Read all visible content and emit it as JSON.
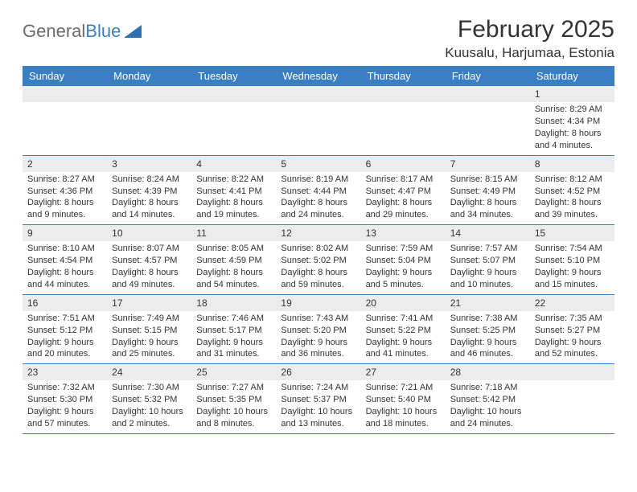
{
  "logo": {
    "text1": "General",
    "text2": "Blue"
  },
  "title": "February 2025",
  "location": "Kuusalu, Harjumaa, Estonia",
  "colors": {
    "header_bg": "#3a7fc4",
    "header_text": "#ffffff",
    "daynum_bg": "#ececec",
    "border": "#3a7fc4",
    "text": "#333333",
    "page_bg": "#ffffff"
  },
  "day_headers": [
    "Sunday",
    "Monday",
    "Tuesday",
    "Wednesday",
    "Thursday",
    "Friday",
    "Saturday"
  ],
  "weeks": [
    [
      {
        "n": "",
        "empty": true
      },
      {
        "n": "",
        "empty": true
      },
      {
        "n": "",
        "empty": true
      },
      {
        "n": "",
        "empty": true
      },
      {
        "n": "",
        "empty": true
      },
      {
        "n": "",
        "empty": true
      },
      {
        "n": "1",
        "sunrise": "Sunrise: 8:29 AM",
        "sunset": "Sunset: 4:34 PM",
        "day1": "Daylight: 8 hours",
        "day2": "and 4 minutes."
      }
    ],
    [
      {
        "n": "2",
        "sunrise": "Sunrise: 8:27 AM",
        "sunset": "Sunset: 4:36 PM",
        "day1": "Daylight: 8 hours",
        "day2": "and 9 minutes."
      },
      {
        "n": "3",
        "sunrise": "Sunrise: 8:24 AM",
        "sunset": "Sunset: 4:39 PM",
        "day1": "Daylight: 8 hours",
        "day2": "and 14 minutes."
      },
      {
        "n": "4",
        "sunrise": "Sunrise: 8:22 AM",
        "sunset": "Sunset: 4:41 PM",
        "day1": "Daylight: 8 hours",
        "day2": "and 19 minutes."
      },
      {
        "n": "5",
        "sunrise": "Sunrise: 8:19 AM",
        "sunset": "Sunset: 4:44 PM",
        "day1": "Daylight: 8 hours",
        "day2": "and 24 minutes."
      },
      {
        "n": "6",
        "sunrise": "Sunrise: 8:17 AM",
        "sunset": "Sunset: 4:47 PM",
        "day1": "Daylight: 8 hours",
        "day2": "and 29 minutes."
      },
      {
        "n": "7",
        "sunrise": "Sunrise: 8:15 AM",
        "sunset": "Sunset: 4:49 PM",
        "day1": "Daylight: 8 hours",
        "day2": "and 34 minutes."
      },
      {
        "n": "8",
        "sunrise": "Sunrise: 8:12 AM",
        "sunset": "Sunset: 4:52 PM",
        "day1": "Daylight: 8 hours",
        "day2": "and 39 minutes."
      }
    ],
    [
      {
        "n": "9",
        "sunrise": "Sunrise: 8:10 AM",
        "sunset": "Sunset: 4:54 PM",
        "day1": "Daylight: 8 hours",
        "day2": "and 44 minutes."
      },
      {
        "n": "10",
        "sunrise": "Sunrise: 8:07 AM",
        "sunset": "Sunset: 4:57 PM",
        "day1": "Daylight: 8 hours",
        "day2": "and 49 minutes."
      },
      {
        "n": "11",
        "sunrise": "Sunrise: 8:05 AM",
        "sunset": "Sunset: 4:59 PM",
        "day1": "Daylight: 8 hours",
        "day2": "and 54 minutes."
      },
      {
        "n": "12",
        "sunrise": "Sunrise: 8:02 AM",
        "sunset": "Sunset: 5:02 PM",
        "day1": "Daylight: 8 hours",
        "day2": "and 59 minutes."
      },
      {
        "n": "13",
        "sunrise": "Sunrise: 7:59 AM",
        "sunset": "Sunset: 5:04 PM",
        "day1": "Daylight: 9 hours",
        "day2": "and 5 minutes."
      },
      {
        "n": "14",
        "sunrise": "Sunrise: 7:57 AM",
        "sunset": "Sunset: 5:07 PM",
        "day1": "Daylight: 9 hours",
        "day2": "and 10 minutes."
      },
      {
        "n": "15",
        "sunrise": "Sunrise: 7:54 AM",
        "sunset": "Sunset: 5:10 PM",
        "day1": "Daylight: 9 hours",
        "day2": "and 15 minutes."
      }
    ],
    [
      {
        "n": "16",
        "sunrise": "Sunrise: 7:51 AM",
        "sunset": "Sunset: 5:12 PM",
        "day1": "Daylight: 9 hours",
        "day2": "and 20 minutes."
      },
      {
        "n": "17",
        "sunrise": "Sunrise: 7:49 AM",
        "sunset": "Sunset: 5:15 PM",
        "day1": "Daylight: 9 hours",
        "day2": "and 25 minutes."
      },
      {
        "n": "18",
        "sunrise": "Sunrise: 7:46 AM",
        "sunset": "Sunset: 5:17 PM",
        "day1": "Daylight: 9 hours",
        "day2": "and 31 minutes."
      },
      {
        "n": "19",
        "sunrise": "Sunrise: 7:43 AM",
        "sunset": "Sunset: 5:20 PM",
        "day1": "Daylight: 9 hours",
        "day2": "and 36 minutes."
      },
      {
        "n": "20",
        "sunrise": "Sunrise: 7:41 AM",
        "sunset": "Sunset: 5:22 PM",
        "day1": "Daylight: 9 hours",
        "day2": "and 41 minutes."
      },
      {
        "n": "21",
        "sunrise": "Sunrise: 7:38 AM",
        "sunset": "Sunset: 5:25 PM",
        "day1": "Daylight: 9 hours",
        "day2": "and 46 minutes."
      },
      {
        "n": "22",
        "sunrise": "Sunrise: 7:35 AM",
        "sunset": "Sunset: 5:27 PM",
        "day1": "Daylight: 9 hours",
        "day2": "and 52 minutes."
      }
    ],
    [
      {
        "n": "23",
        "sunrise": "Sunrise: 7:32 AM",
        "sunset": "Sunset: 5:30 PM",
        "day1": "Daylight: 9 hours",
        "day2": "and 57 minutes."
      },
      {
        "n": "24",
        "sunrise": "Sunrise: 7:30 AM",
        "sunset": "Sunset: 5:32 PM",
        "day1": "Daylight: 10 hours",
        "day2": "and 2 minutes."
      },
      {
        "n": "25",
        "sunrise": "Sunrise: 7:27 AM",
        "sunset": "Sunset: 5:35 PM",
        "day1": "Daylight: 10 hours",
        "day2": "and 8 minutes."
      },
      {
        "n": "26",
        "sunrise": "Sunrise: 7:24 AM",
        "sunset": "Sunset: 5:37 PM",
        "day1": "Daylight: 10 hours",
        "day2": "and 13 minutes."
      },
      {
        "n": "27",
        "sunrise": "Sunrise: 7:21 AM",
        "sunset": "Sunset: 5:40 PM",
        "day1": "Daylight: 10 hours",
        "day2": "and 18 minutes."
      },
      {
        "n": "28",
        "sunrise": "Sunrise: 7:18 AM",
        "sunset": "Sunset: 5:42 PM",
        "day1": "Daylight: 10 hours",
        "day2": "and 24 minutes."
      },
      {
        "n": "",
        "empty": true
      }
    ]
  ]
}
